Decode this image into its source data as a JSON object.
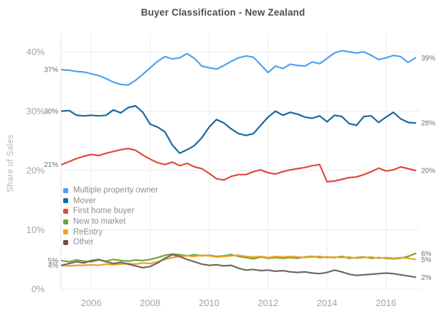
{
  "chart_data": {
    "type": "line",
    "title": "Buyer Classification - New Zealand",
    "xlabel": "",
    "ylabel": "Share of Sales",
    "x_ticks": [
      2006,
      2008,
      2010,
      2012,
      2014,
      2016
    ],
    "y_ticks": [
      "0%",
      "10%",
      "20%",
      "30%",
      "40%"
    ],
    "xlim": [
      2005,
      2017.3
    ],
    "ylim": [
      0,
      43
    ],
    "grid": true,
    "legend_position": "inside-left",
    "axis_text_color": "#a4a4a4",
    "grid_color": "#ececec",
    "point_label_color": "#6f6f6f",
    "x": [
      2005,
      2005.25,
      2005.5,
      2005.75,
      2006,
      2006.25,
      2006.5,
      2006.75,
      2007,
      2007.25,
      2007.5,
      2007.75,
      2008,
      2008.25,
      2008.5,
      2008.75,
      2009,
      2009.25,
      2009.5,
      2009.75,
      2010,
      2010.25,
      2010.5,
      2010.75,
      2011,
      2011.25,
      2011.5,
      2011.75,
      2012,
      2012.25,
      2012.5,
      2012.75,
      2013,
      2013.25,
      2013.5,
      2013.75,
      2014,
      2014.25,
      2014.5,
      2014.75,
      2015,
      2015.25,
      2015.5,
      2015.75,
      2016,
      2016.25,
      2016.5,
      2016.75,
      2017
    ],
    "series": [
      {
        "name": "Multiple property owner",
        "color": "#4da2f2",
        "start_label": "37%",
        "end_label": "39%",
        "values": [
          37.0,
          36.9,
          36.7,
          36.6,
          36.3,
          36.0,
          35.5,
          34.9,
          34.5,
          34.4,
          35.2,
          36.2,
          37.3,
          38.4,
          39.2,
          38.8,
          39.0,
          39.7,
          38.9,
          37.6,
          37.3,
          37.1,
          37.7,
          38.4,
          39.0,
          39.3,
          39.1,
          37.8,
          36.5,
          37.6,
          37.2,
          37.9,
          37.7,
          37.6,
          38.3,
          38.0,
          38.9,
          39.8,
          40.2,
          40.0,
          39.8,
          40.0,
          39.4,
          38.7,
          39.0,
          39.4,
          39.2,
          38.2,
          39.0
        ]
      },
      {
        "name": "Mover",
        "color": "#16699e",
        "start_label": "30%",
        "end_label": "28%",
        "values": [
          30.0,
          30.1,
          29.3,
          29.2,
          29.3,
          29.2,
          29.3,
          30.2,
          29.7,
          30.6,
          30.9,
          29.8,
          27.8,
          27.3,
          26.5,
          24.3,
          22.9,
          23.5,
          24.2,
          25.5,
          27.3,
          28.6,
          28.0,
          27.0,
          26.2,
          25.9,
          26.2,
          27.6,
          29.0,
          30.0,
          29.3,
          29.8,
          29.5,
          29.0,
          28.8,
          29.2,
          28.2,
          29.3,
          29.1,
          27.9,
          27.6,
          29.1,
          29.2,
          28.1,
          29.0,
          29.8,
          28.7,
          28.1,
          28.0
        ]
      },
      {
        "name": "First home buyer",
        "color": "#e2493b",
        "start_label": "21%",
        "end_label": "20%",
        "values": [
          21.0,
          21.5,
          22.0,
          22.4,
          22.7,
          22.5,
          22.9,
          23.2,
          23.5,
          23.7,
          23.4,
          22.6,
          21.9,
          21.3,
          21.0,
          21.4,
          20.8,
          21.2,
          20.6,
          20.3,
          19.5,
          18.6,
          18.4,
          19.0,
          19.3,
          19.3,
          19.8,
          20.1,
          19.6,
          19.4,
          19.8,
          20.1,
          20.3,
          20.5,
          20.8,
          21.0,
          18.1,
          18.2,
          18.5,
          18.8,
          18.9,
          19.3,
          19.8,
          20.4,
          19.9,
          20.1,
          20.6,
          20.3,
          20.0
        ]
      },
      {
        "name": "New to market",
        "color": "#6fa33c",
        "start_label": "5%",
        "end_label": "6%",
        "values": [
          4.8,
          4.6,
          4.9,
          4.7,
          4.6,
          4.9,
          4.7,
          5.0,
          4.8,
          4.7,
          4.9,
          4.8,
          5.0,
          5.3,
          5.7,
          5.9,
          5.8,
          5.6,
          5.8,
          5.6,
          5.7,
          5.5,
          5.6,
          5.8,
          5.5,
          5.3,
          5.1,
          5.4,
          5.2,
          5.3,
          5.2,
          5.3,
          5.2,
          5.4,
          5.5,
          5.3,
          5.4,
          5.3,
          5.5,
          5.2,
          5.3,
          5.4,
          5.2,
          5.3,
          5.2,
          5.1,
          5.2,
          5.5,
          6.0
        ]
      },
      {
        "name": "ReEntry",
        "color": "#f0a31c",
        "start_label": "4%",
        "end_label": "5%",
        "values": [
          4.0,
          3.9,
          4.0,
          4.0,
          4.1,
          4.0,
          4.2,
          4.1,
          4.2,
          4.3,
          4.2,
          4.4,
          4.3,
          4.6,
          5.0,
          5.3,
          5.5,
          5.6,
          5.5,
          5.7,
          5.6,
          5.4,
          5.5,
          5.6,
          5.7,
          5.5,
          5.4,
          5.5,
          5.3,
          5.5,
          5.4,
          5.5,
          5.4,
          5.3,
          5.4,
          5.5,
          5.3,
          5.4,
          5.3,
          5.4,
          5.2,
          5.3,
          5.4,
          5.2,
          5.3,
          5.2,
          5.3,
          5.2,
          5.0
        ]
      },
      {
        "name": "Other",
        "color": "#6b5243",
        "line_color": "#70685f",
        "start_label": "",
        "end_label": "2%",
        "values": [
          4.0,
          4.3,
          4.6,
          4.4,
          4.8,
          5.0,
          4.6,
          4.3,
          4.5,
          4.2,
          3.9,
          3.6,
          3.8,
          4.4,
          5.2,
          5.8,
          5.5,
          5.0,
          4.6,
          4.2,
          4.0,
          4.1,
          3.9,
          4.0,
          3.5,
          3.2,
          3.3,
          3.1,
          3.2,
          3.0,
          3.1,
          2.9,
          2.8,
          2.9,
          2.7,
          2.6,
          2.8,
          3.2,
          2.9,
          2.5,
          2.3,
          2.4,
          2.5,
          2.6,
          2.7,
          2.6,
          2.4,
          2.2,
          2.0
        ]
      }
    ]
  }
}
